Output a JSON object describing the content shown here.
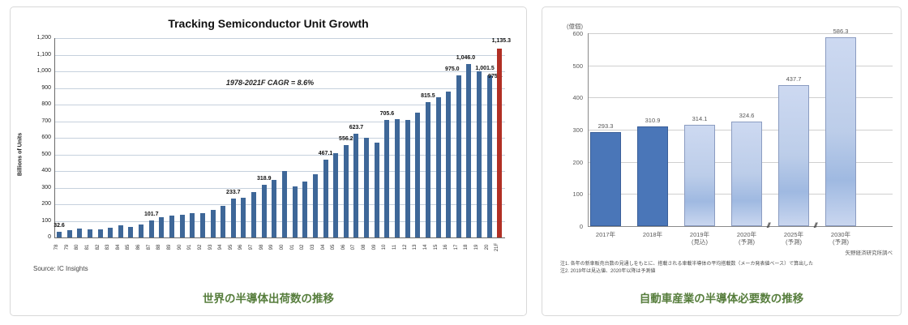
{
  "page": {
    "background": "#ffffff"
  },
  "left_panel": {
    "caption": "世界の半導体出荷数の推移",
    "caption_color": "#567d3c"
  },
  "right_panel": {
    "caption": "自動車産業の半導体必要数の推移",
    "caption_color": "#567d3c",
    "notes": [
      "注1. 各年の新車販売台数の見通しをもとに、搭載される車載半導体の平均搭載数（メーカ発表値ベース）で算出した",
      "注2. 2019年は見込値、2020年以降は予測値"
    ]
  },
  "chart_data": [
    {
      "type": "bar",
      "title": "Tracking Semiconductor Unit Growth",
      "ylabel": "Billions of Units",
      "annotation": "1978-2021F CAGR = 8.6%",
      "source": "Source: IC Insights",
      "ylim": [
        0,
        1200
      ],
      "ytick_step": 100,
      "grid": true,
      "legend": "none",
      "categories": [
        "78",
        "79",
        "80",
        "81",
        "82",
        "83",
        "84",
        "85",
        "86",
        "87",
        "88",
        "89",
        "90",
        "91",
        "92",
        "93",
        "94",
        "95",
        "96",
        "97",
        "98",
        "99",
        "00",
        "01",
        "02",
        "03",
        "04",
        "05",
        "06",
        "07",
        "08",
        "09",
        "10",
        "11",
        "12",
        "13",
        "14",
        "15",
        "16",
        "17",
        "18",
        "19",
        "20",
        "21F"
      ],
      "values": [
        32.6,
        42,
        52,
        48,
        47,
        60,
        74,
        63,
        78,
        101.7,
        120,
        133,
        138,
        148,
        146,
        166,
        190,
        233.7,
        240,
        272,
        318.9,
        345,
        400,
        305,
        335,
        380,
        467.1,
        505,
        556.2,
        623.7,
        600,
        572,
        705.6,
        712,
        708,
        752,
        815.5,
        845,
        880,
        975.0,
        1046.0,
        1001.5,
        975.4,
        1135.3
      ],
      "point_labels": {
        "0": "32.6",
        "9": "101.7",
        "17": "233.7",
        "20": "318.9",
        "26": "467.1",
        "28": "556.2",
        "29": "623.7",
        "32": "705.6",
        "36": "815.5",
        "39": "975.0",
        "40": "1,046.0",
        "41": "1,001.5",
        "42": "975.4",
        "43": "1,135.3"
      },
      "bar_color": "#3e6798",
      "highlight_index": 43,
      "highlight_color": "#b12f25"
    },
    {
      "type": "bar",
      "title": "",
      "unit_label": "(億個)",
      "source": "矢野経済研究所調べ",
      "ylim": [
        0,
        600
      ],
      "ytick_step": 100,
      "grid": true,
      "legend": "none",
      "categories": [
        "2017年",
        "2018年",
        "2019年",
        "2020年",
        "2025年",
        "2030年"
      ],
      "sublabels": [
        "",
        "",
        "(見込)",
        "(予測)",
        "(予測)",
        "(予測)"
      ],
      "values": [
        293.3,
        310.9,
        314.1,
        324.6,
        437.7,
        586.3
      ],
      "point_labels": [
        "293.3",
        "310.9",
        "314.1",
        "324.6",
        "437.7",
        "586.3"
      ],
      "solid_count": 2,
      "solid_color": "#4a76b8",
      "light_color": "#c6d4ee",
      "axis_breaks_between": [
        [
          3,
          4
        ],
        [
          4,
          5
        ]
      ]
    }
  ]
}
